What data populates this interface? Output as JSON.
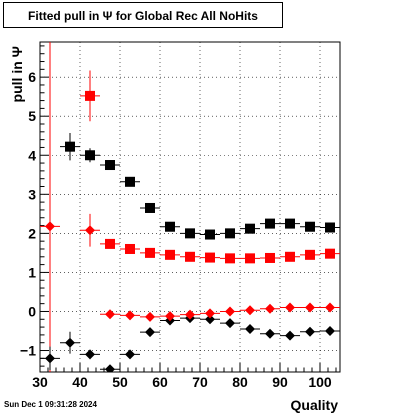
{
  "chart_data": {
    "type": "scatter",
    "title": "Fitted pull in  Ψ  for Global Rec All NoHits",
    "xlabel": "Quality",
    "ylabel": "pull in  Ψ",
    "xlim": [
      30,
      105
    ],
    "ylim": [
      -1.55,
      6.9
    ],
    "grid": true,
    "x_ticks": [
      30,
      40,
      50,
      60,
      70,
      80,
      90,
      100
    ],
    "y_ticks": [
      -1,
      0,
      1,
      2,
      3,
      4,
      5,
      6
    ],
    "reference_line_x": 32.5,
    "series": [
      {
        "color": "#000000",
        "marker": "square",
        "points": [
          {
            "x": 37.5,
            "y": 4.22,
            "err": 0.35
          },
          {
            "x": 42.5,
            "y": 4.0,
            "err": 0.18
          },
          {
            "x": 47.5,
            "y": 3.75,
            "err": 0.1
          },
          {
            "x": 52.5,
            "y": 3.32,
            "err": 0.07
          },
          {
            "x": 57.5,
            "y": 2.65,
            "err": 0.06
          },
          {
            "x": 62.5,
            "y": 2.17,
            "err": 0.05
          },
          {
            "x": 67.5,
            "y": 2.0,
            "err": 0.05
          },
          {
            "x": 72.5,
            "y": 1.97,
            "err": 0.05
          },
          {
            "x": 77.5,
            "y": 2.0,
            "err": 0.05
          },
          {
            "x": 82.5,
            "y": 2.12,
            "err": 0.05
          },
          {
            "x": 87.5,
            "y": 2.25,
            "err": 0.05
          },
          {
            "x": 92.5,
            "y": 2.25,
            "err": 0.05
          },
          {
            "x": 97.5,
            "y": 2.17,
            "err": 0.05
          },
          {
            "x": 102.5,
            "y": 2.15,
            "err": 0.05
          }
        ]
      },
      {
        "color": "#000000",
        "marker": "diamond",
        "points": [
          {
            "x": 32.5,
            "y": -1.2,
            "err": 0.3
          },
          {
            "x": 37.5,
            "y": -0.8,
            "err": 0.28
          },
          {
            "x": 42.5,
            "y": -1.1,
            "err": 0.12
          },
          {
            "x": 47.5,
            "y": -1.48,
            "err": 0.08
          },
          {
            "x": 52.5,
            "y": -1.1,
            "err": 0.06
          },
          {
            "x": 57.5,
            "y": -0.53,
            "err": 0.05
          },
          {
            "x": 62.5,
            "y": -0.23,
            "err": 0.05
          },
          {
            "x": 67.5,
            "y": -0.17,
            "err": 0.05
          },
          {
            "x": 72.5,
            "y": -0.2,
            "err": 0.05
          },
          {
            "x": 77.5,
            "y": -0.3,
            "err": 0.05
          },
          {
            "x": 82.5,
            "y": -0.45,
            "err": 0.05
          },
          {
            "x": 87.5,
            "y": -0.57,
            "err": 0.05
          },
          {
            "x": 92.5,
            "y": -0.62,
            "err": 0.05
          },
          {
            "x": 97.5,
            "y": -0.52,
            "err": 0.05
          },
          {
            "x": 102.5,
            "y": -0.5,
            "err": 0.05
          }
        ]
      },
      {
        "color": "#ff0000",
        "marker": "square",
        "points": [
          {
            "x": 42.5,
            "y": 5.52,
            "err": 0.65
          },
          {
            "x": 47.5,
            "y": 1.73,
            "err": 0.1
          },
          {
            "x": 52.5,
            "y": 1.6,
            "err": 0.07
          },
          {
            "x": 57.5,
            "y": 1.5,
            "err": 0.06
          },
          {
            "x": 62.5,
            "y": 1.45,
            "err": 0.05
          },
          {
            "x": 67.5,
            "y": 1.4,
            "err": 0.05
          },
          {
            "x": 72.5,
            "y": 1.38,
            "err": 0.05
          },
          {
            "x": 77.5,
            "y": 1.36,
            "err": 0.05
          },
          {
            "x": 82.5,
            "y": 1.36,
            "err": 0.05
          },
          {
            "x": 87.5,
            "y": 1.37,
            "err": 0.05
          },
          {
            "x": 92.5,
            "y": 1.4,
            "err": 0.05
          },
          {
            "x": 97.5,
            "y": 1.45,
            "err": 0.05
          },
          {
            "x": 102.5,
            "y": 1.48,
            "err": 0.05
          }
        ]
      },
      {
        "color": "#ff0000",
        "marker": "diamond",
        "points": [
          {
            "x": 32.5,
            "y": 2.18,
            "err": 0.1
          },
          {
            "x": 42.5,
            "y": 2.08,
            "err": 0.42
          },
          {
            "x": 47.5,
            "y": -0.07,
            "err": 0.08
          },
          {
            "x": 52.5,
            "y": -0.1,
            "err": 0.06
          },
          {
            "x": 57.5,
            "y": -0.14,
            "err": 0.05
          },
          {
            "x": 62.5,
            "y": -0.12,
            "err": 0.05
          },
          {
            "x": 67.5,
            "y": -0.08,
            "err": 0.05
          },
          {
            "x": 72.5,
            "y": -0.05,
            "err": 0.05
          },
          {
            "x": 77.5,
            "y": 0.0,
            "err": 0.05
          },
          {
            "x": 82.5,
            "y": 0.03,
            "err": 0.05
          },
          {
            "x": 87.5,
            "y": 0.07,
            "err": 0.05
          },
          {
            "x": 92.5,
            "y": 0.1,
            "err": 0.05
          },
          {
            "x": 97.5,
            "y": 0.1,
            "err": 0.05
          },
          {
            "x": 102.5,
            "y": 0.1,
            "err": 0.05
          }
        ]
      }
    ]
  },
  "footer": {
    "timestamp": "Sun Dec  1 09:31:28 2024"
  }
}
